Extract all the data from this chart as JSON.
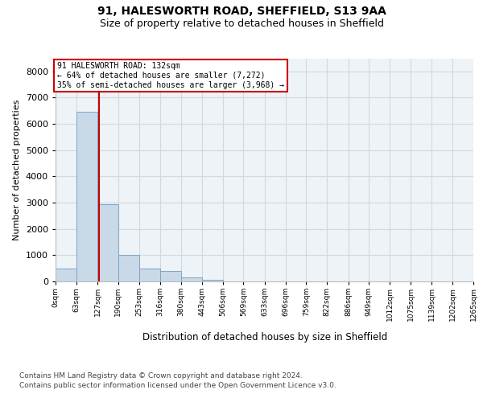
{
  "title_line1": "91, HALESWORTH ROAD, SHEFFIELD, S13 9AA",
  "title_line2": "Size of property relative to detached houses in Sheffield",
  "xlabel": "Distribution of detached houses by size in Sheffield",
  "ylabel": "Number of detached properties",
  "bin_edges": [
    0,
    63,
    127,
    190,
    253,
    316,
    380,
    443,
    506,
    569,
    633,
    696,
    759,
    822,
    886,
    949,
    1012,
    1075,
    1139,
    1202,
    1265
  ],
  "bar_heights": [
    490,
    6450,
    2950,
    1000,
    490,
    390,
    150,
    50,
    10,
    5,
    2,
    1,
    0,
    0,
    0,
    0,
    0,
    0,
    0,
    0
  ],
  "bar_color": "#c9d9e8",
  "bar_edge_color": "#7ba7c7",
  "property_size": 132,
  "vline_color": "#cc0000",
  "annotation_text_line1": "91 HALESWORTH ROAD: 132sqm",
  "annotation_text_line2": "← 64% of detached houses are smaller (7,272)",
  "annotation_text_line3": "35% of semi-detached houses are larger (3,968) →",
  "annotation_box_color": "#cc0000",
  "ylim": [
    0,
    8500
  ],
  "yticks": [
    0,
    1000,
    2000,
    3000,
    4000,
    5000,
    6000,
    7000,
    8000
  ],
  "grid_color": "#d0d8e0",
  "background_color": "#eef3f7",
  "footnote_line1": "Contains HM Land Registry data © Crown copyright and database right 2024.",
  "footnote_line2": "Contains public sector information licensed under the Open Government Licence v3.0.",
  "tick_labels": [
    "0sqm",
    "63sqm",
    "127sqm",
    "190sqm",
    "253sqm",
    "316sqm",
    "380sqm",
    "443sqm",
    "506sqm",
    "569sqm",
    "633sqm",
    "696sqm",
    "759sqm",
    "822sqm",
    "886sqm",
    "949sqm",
    "1012sqm",
    "1075sqm",
    "1139sqm",
    "1202sqm",
    "1265sqm"
  ]
}
